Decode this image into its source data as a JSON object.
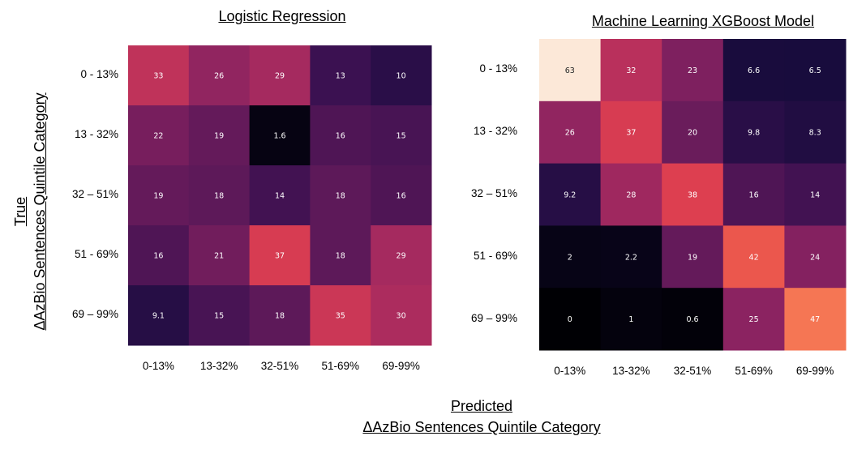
{
  "chart_data": [
    {
      "type": "heatmap",
      "title": "Logistic Regression",
      "x_categories": [
        "0-13%",
        "13-32%",
        "32-51%",
        "51-69%",
        "69-99%"
      ],
      "y_categories": [
        "0 - 13%",
        "13 - 32%",
        "32 – 51%",
        "51 - 69%",
        "69 – 99%"
      ],
      "values": [
        [
          33,
          26,
          29,
          13,
          10
        ],
        [
          22,
          19,
          1.6,
          16,
          15
        ],
        [
          19,
          18,
          14,
          18,
          16
        ],
        [
          16,
          21,
          37,
          18,
          29
        ],
        [
          9.1,
          15,
          18,
          35,
          30
        ]
      ],
      "value_labels": [
        [
          "33",
          "26",
          "29",
          "13",
          "10"
        ],
        [
          "22",
          "19",
          "1.6",
          "16",
          "15"
        ],
        [
          "19",
          "18",
          "14",
          "18",
          "16"
        ],
        [
          "16",
          "21",
          "37",
          "18",
          "29"
        ],
        [
          "9.1",
          "15",
          "18",
          "35",
          "30"
        ]
      ],
      "colorscale": "magma",
      "value_range": [
        0,
        63
      ]
    },
    {
      "type": "heatmap",
      "title": "Machine Learning XGBoost Model",
      "x_categories": [
        "0-13%",
        "13-32%",
        "32-51%",
        "51-69%",
        "69-99%"
      ],
      "y_categories": [
        "0 - 13%",
        "13 - 32%",
        "32 – 51%",
        "51 - 69%",
        "69 – 99%"
      ],
      "values": [
        [
          63,
          32,
          23,
          6.6,
          6.5
        ],
        [
          26,
          37,
          20,
          9.8,
          8.3
        ],
        [
          9.2,
          28,
          38,
          16,
          14
        ],
        [
          2,
          2.2,
          19,
          42,
          24
        ],
        [
          0,
          1,
          0.6,
          25,
          47
        ]
      ],
      "value_labels": [
        [
          "63",
          "32",
          "23",
          "6.6",
          "6.5"
        ],
        [
          "26",
          "37",
          "20",
          "9.8",
          "8.3"
        ],
        [
          "9.2",
          "28",
          "38",
          "16",
          "14"
        ],
        [
          "2",
          "2.2",
          "19",
          "42",
          "24"
        ],
        [
          "0",
          "1",
          "0.6",
          "25",
          "47"
        ]
      ],
      "colorscale": "magma",
      "value_range": [
        0,
        63
      ]
    }
  ],
  "axes": {
    "ylabel_line1": "True",
    "ylabel_line2": "ΔAzBio Sentences Quintile Category",
    "xlabel_line1": "Predicted",
    "xlabel_line2": "ΔAzBio Sentences Quintile Category"
  }
}
